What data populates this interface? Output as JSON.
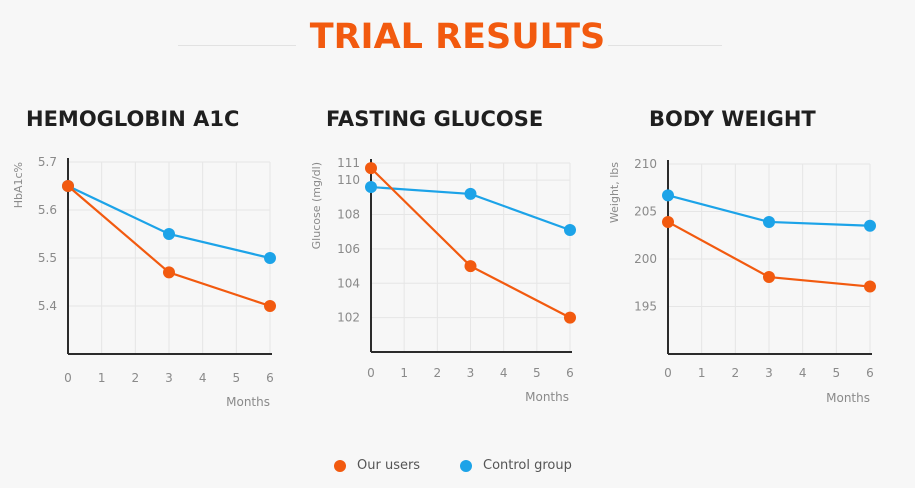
{
  "title": "TRIAL RESULTS",
  "legend": [
    {
      "label": "Our users",
      "color": "#f25a0f"
    },
    {
      "label": "Control group",
      "color": "#1ca3e8"
    }
  ],
  "chart_data": [
    {
      "type": "line",
      "title": "HEMOGLOBIN A1C",
      "xlabel": "Months",
      "ylabel": "HbA1c%",
      "x_ticks": [
        0,
        1,
        2,
        3,
        4,
        5,
        6
      ],
      "y_ticks": [
        5.4,
        5.5,
        5.6,
        5.7
      ],
      "xlim": [
        0,
        6
      ],
      "ylim": [
        5.3,
        5.7
      ],
      "grid": true,
      "series": [
        {
          "name": "Control group",
          "color": "#1ca3e8",
          "x": [
            0,
            3,
            6
          ],
          "y": [
            5.65,
            5.55,
            5.5
          ]
        },
        {
          "name": "Our users",
          "color": "#f25a0f",
          "x": [
            0,
            3,
            6
          ],
          "y": [
            5.65,
            5.47,
            5.4
          ]
        }
      ]
    },
    {
      "type": "line",
      "title": "FASTING GLUCOSE",
      "xlabel": "Months",
      "ylabel": "Glucose (mg/dl)",
      "x_ticks": [
        0,
        1,
        2,
        3,
        4,
        5,
        6
      ],
      "y_ticks": [
        102,
        104,
        106,
        108,
        110,
        111
      ],
      "xlim": [
        0,
        6
      ],
      "ylim": [
        100,
        111
      ],
      "grid": true,
      "series": [
        {
          "name": "Control group",
          "color": "#1ca3e8",
          "x": [
            0,
            3,
            6
          ],
          "y": [
            109.6,
            109.2,
            107.1
          ]
        },
        {
          "name": "Our users",
          "color": "#f25a0f",
          "x": [
            0,
            3,
            6
          ],
          "y": [
            110.7,
            105,
            102
          ]
        }
      ]
    },
    {
      "type": "line",
      "title": "BODY WEIGHT",
      "xlabel": "Months",
      "ylabel": "Weight, lbs",
      "x_ticks": [
        0,
        1,
        2,
        3,
        4,
        5,
        6
      ],
      "y_ticks": [
        195,
        200,
        205,
        210
      ],
      "xlim": [
        0,
        6
      ],
      "ylim": [
        190,
        210
      ],
      "grid": true,
      "series": [
        {
          "name": "Control group",
          "color": "#1ca3e8",
          "x": [
            0,
            3,
            6
          ],
          "y": [
            206.7,
            203.9,
            203.5
          ]
        },
        {
          "name": "Our users",
          "color": "#f25a0f",
          "x": [
            0,
            3,
            6
          ],
          "y": [
            203.9,
            198.1,
            197.1
          ]
        }
      ]
    }
  ]
}
